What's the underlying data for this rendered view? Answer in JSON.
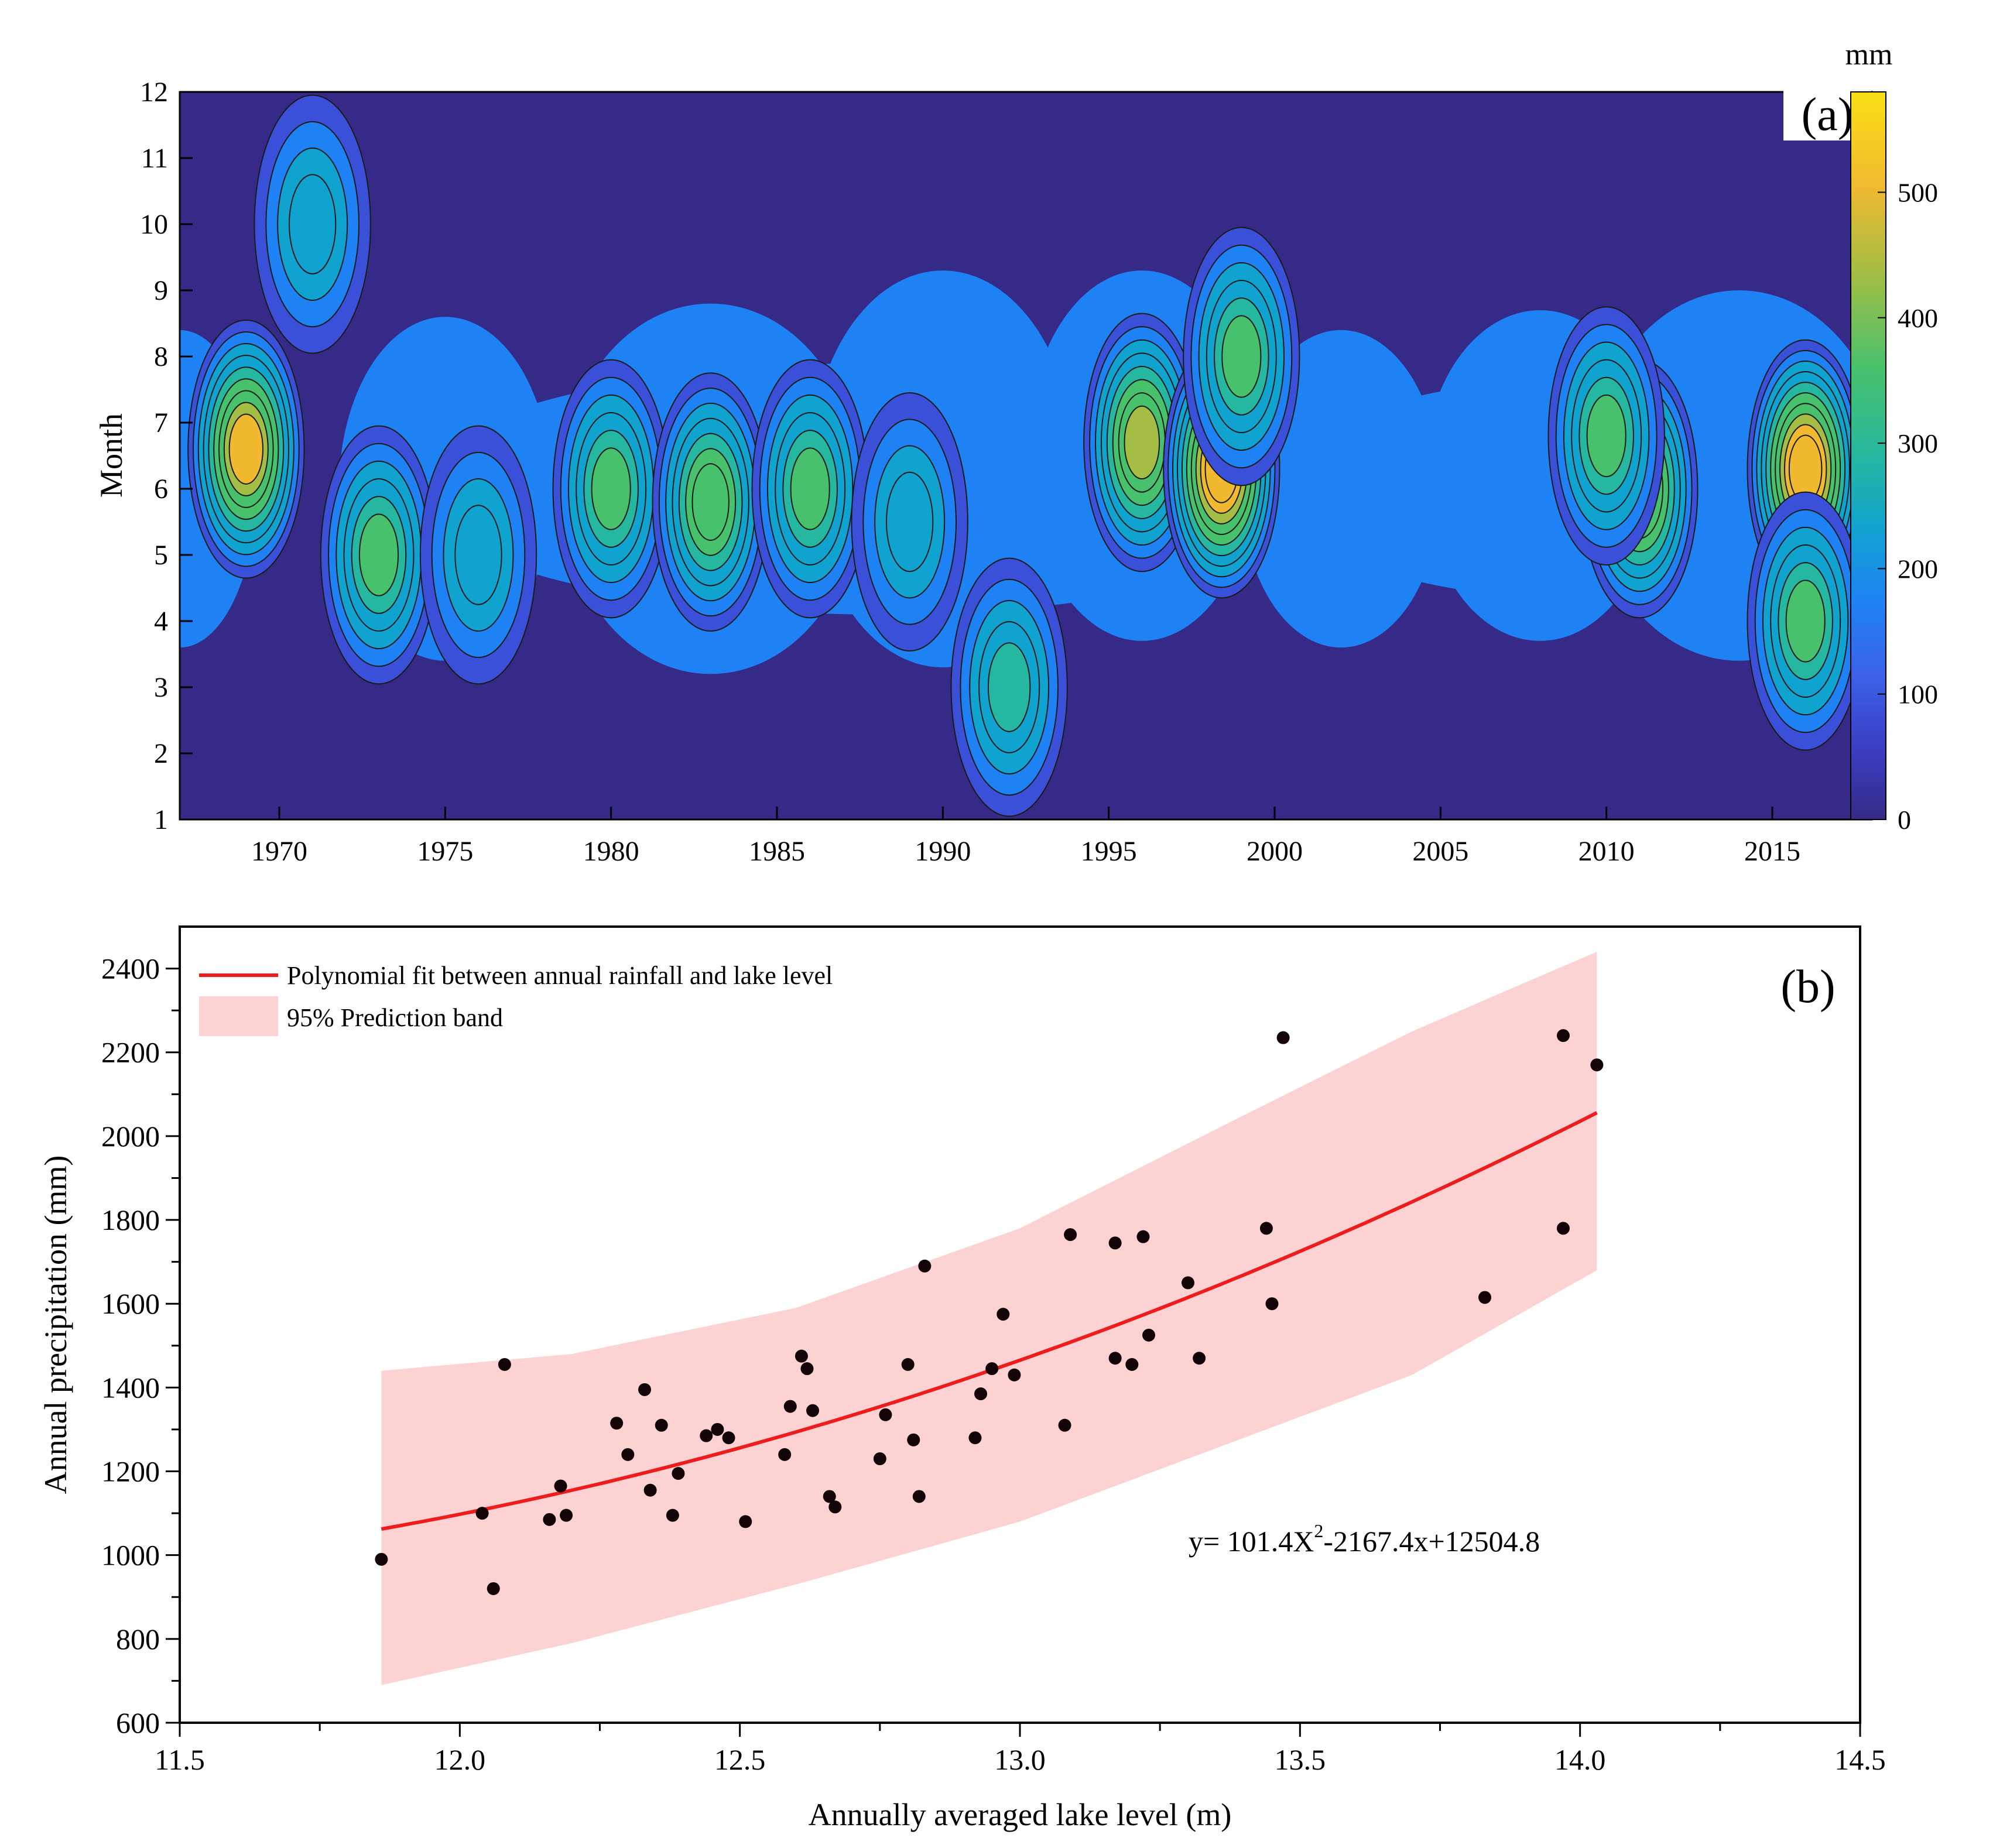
{
  "chart_data": [
    {
      "type": "heatmap",
      "panel_label": "(a)",
      "ylabel": "Month",
      "xlabel": "",
      "xlim": [
        1967,
        2018
      ],
      "ylim": [
        1,
        12
      ],
      "x_tick_labels": [
        "1970",
        "1975",
        "1980",
        "1985",
        "1990",
        "1995",
        "2000",
        "2005",
        "2010",
        "2015"
      ],
      "y_tick_labels": [
        "1",
        "2",
        "3",
        "4",
        "5",
        "6",
        "7",
        "8",
        "9",
        "10",
        "11",
        "12"
      ],
      "colorbar": {
        "title": "mm",
        "range": [
          0,
          580
        ],
        "tick_labels": [
          "0",
          "100",
          "200",
          "300",
          "400",
          "500"
        ],
        "colors": [
          "#352a87",
          "#3b50d8",
          "#1f82f4",
          "#11a3d0",
          "#26b7a0",
          "#48c16c",
          "#a3bd45",
          "#f1b930",
          "#f9e014"
        ]
      },
      "contour_levels": [
        50,
        100,
        150,
        200,
        250,
        300,
        350,
        400,
        450,
        500
      ],
      "hotspots": [
        {
          "year": 1969,
          "month": 6.6,
          "value": 470
        },
        {
          "year": 1973,
          "month": 5,
          "value": 330
        },
        {
          "year": 1980,
          "month": 6,
          "value": 330
        },
        {
          "year": 1983,
          "month": 5.8,
          "value": 380
        },
        {
          "year": 1986,
          "month": 6,
          "value": 300
        },
        {
          "year": 1989,
          "month": 5.5,
          "value": 240
        },
        {
          "year": 1996,
          "month": 6.7,
          "value": 430
        },
        {
          "year": 1998.4,
          "month": 6.3,
          "value": 570
        },
        {
          "year": 1999,
          "month": 8,
          "value": 320
        },
        {
          "year": 2011,
          "month": 6,
          "value": 400
        },
        {
          "year": 2010,
          "month": 6.8,
          "value": 300
        },
        {
          "year": 2016,
          "month": 6.3,
          "value": 520
        },
        {
          "year": 2016,
          "month": 4,
          "value": 340
        },
        {
          "year": 1992,
          "month": 3,
          "value": 270
        },
        {
          "year": 1976,
          "month": 5,
          "value": 220
        },
        {
          "year": 1971,
          "month": 10,
          "value": 240
        }
      ]
    },
    {
      "type": "scatter",
      "panel_label": "(b)",
      "xlabel": "Annually  averaged lake  level (m)",
      "ylabel": "Annual  precipitation (mm)",
      "xlim": [
        11.5,
        14.5
      ],
      "ylim": [
        600,
        2500
      ],
      "x_tick_labels": [
        "11.5",
        "12.0",
        "12.5",
        "13.0",
        "13.5",
        "14.0",
        "14.5"
      ],
      "y_tick_labels": [
        "600",
        "800",
        "1000",
        "1200",
        "1400",
        "1600",
        "1800",
        "2000",
        "2200",
        "2400"
      ],
      "legend": [
        {
          "label": "Polynomial fit between annual rainfall and lake level",
          "color": "#ee1c1c",
          "kind": "line"
        },
        {
          "label": "95%  Prediction band",
          "color": "#fcd2d2",
          "kind": "band"
        }
      ],
      "legend_position": "top-left",
      "equation": {
        "prefix": "y= 101.4X",
        "sup": "2",
        "suffix": "-2167.4x+12504.8"
      },
      "fit": {
        "a": 101.4,
        "b": -2167.4,
        "c": 12504.8,
        "x_range": [
          11.86,
          14.03
        ]
      },
      "band_lower": [
        [
          11.86,
          690
        ],
        [
          12.2,
          790
        ],
        [
          12.6,
          930
        ],
        [
          13.0,
          1080
        ],
        [
          13.4,
          1280
        ],
        [
          13.7,
          1430
        ],
        [
          14.03,
          1680
        ]
      ],
      "band_upper": [
        [
          11.86,
          1440
        ],
        [
          12.2,
          1480
        ],
        [
          12.6,
          1590
        ],
        [
          13.0,
          1780
        ],
        [
          13.4,
          2050
        ],
        [
          13.7,
          2250
        ],
        [
          14.03,
          2440
        ]
      ],
      "points": [
        [
          11.86,
          990
        ],
        [
          12.04,
          1100
        ],
        [
          12.06,
          920
        ],
        [
          12.08,
          1455
        ],
        [
          12.16,
          1085
        ],
        [
          12.18,
          1165
        ],
        [
          12.19,
          1095
        ],
        [
          12.28,
          1315
        ],
        [
          12.3,
          1240
        ],
        [
          12.33,
          1395
        ],
        [
          12.34,
          1155
        ],
        [
          12.36,
          1310
        ],
        [
          12.38,
          1095
        ],
        [
          12.39,
          1195
        ],
        [
          12.44,
          1285
        ],
        [
          12.46,
          1300
        ],
        [
          12.48,
          1280
        ],
        [
          12.51,
          1080
        ],
        [
          12.58,
          1240
        ],
        [
          12.59,
          1355
        ],
        [
          12.61,
          1475
        ],
        [
          12.62,
          1445
        ],
        [
          12.63,
          1345
        ],
        [
          12.66,
          1140
        ],
        [
          12.67,
          1115
        ],
        [
          12.75,
          1230
        ],
        [
          12.76,
          1335
        ],
        [
          12.8,
          1455
        ],
        [
          12.81,
          1275
        ],
        [
          12.82,
          1140
        ],
        [
          12.83,
          1690
        ],
        [
          12.92,
          1280
        ],
        [
          12.93,
          1385
        ],
        [
          12.95,
          1445
        ],
        [
          12.97,
          1575
        ],
        [
          12.99,
          1430
        ],
        [
          13.08,
          1310
        ],
        [
          13.09,
          1765
        ],
        [
          13.17,
          1470
        ],
        [
          13.17,
          1745
        ],
        [
          13.2,
          1455
        ],
        [
          13.22,
          1760
        ],
        [
          13.23,
          1525
        ],
        [
          13.3,
          1650
        ],
        [
          13.32,
          1470
        ],
        [
          13.44,
          1780
        ],
        [
          13.45,
          1600
        ],
        [
          13.47,
          2235
        ],
        [
          13.83,
          1615
        ],
        [
          13.97,
          1780
        ],
        [
          13.97,
          2240
        ],
        [
          14.03,
          2170
        ]
      ]
    }
  ]
}
